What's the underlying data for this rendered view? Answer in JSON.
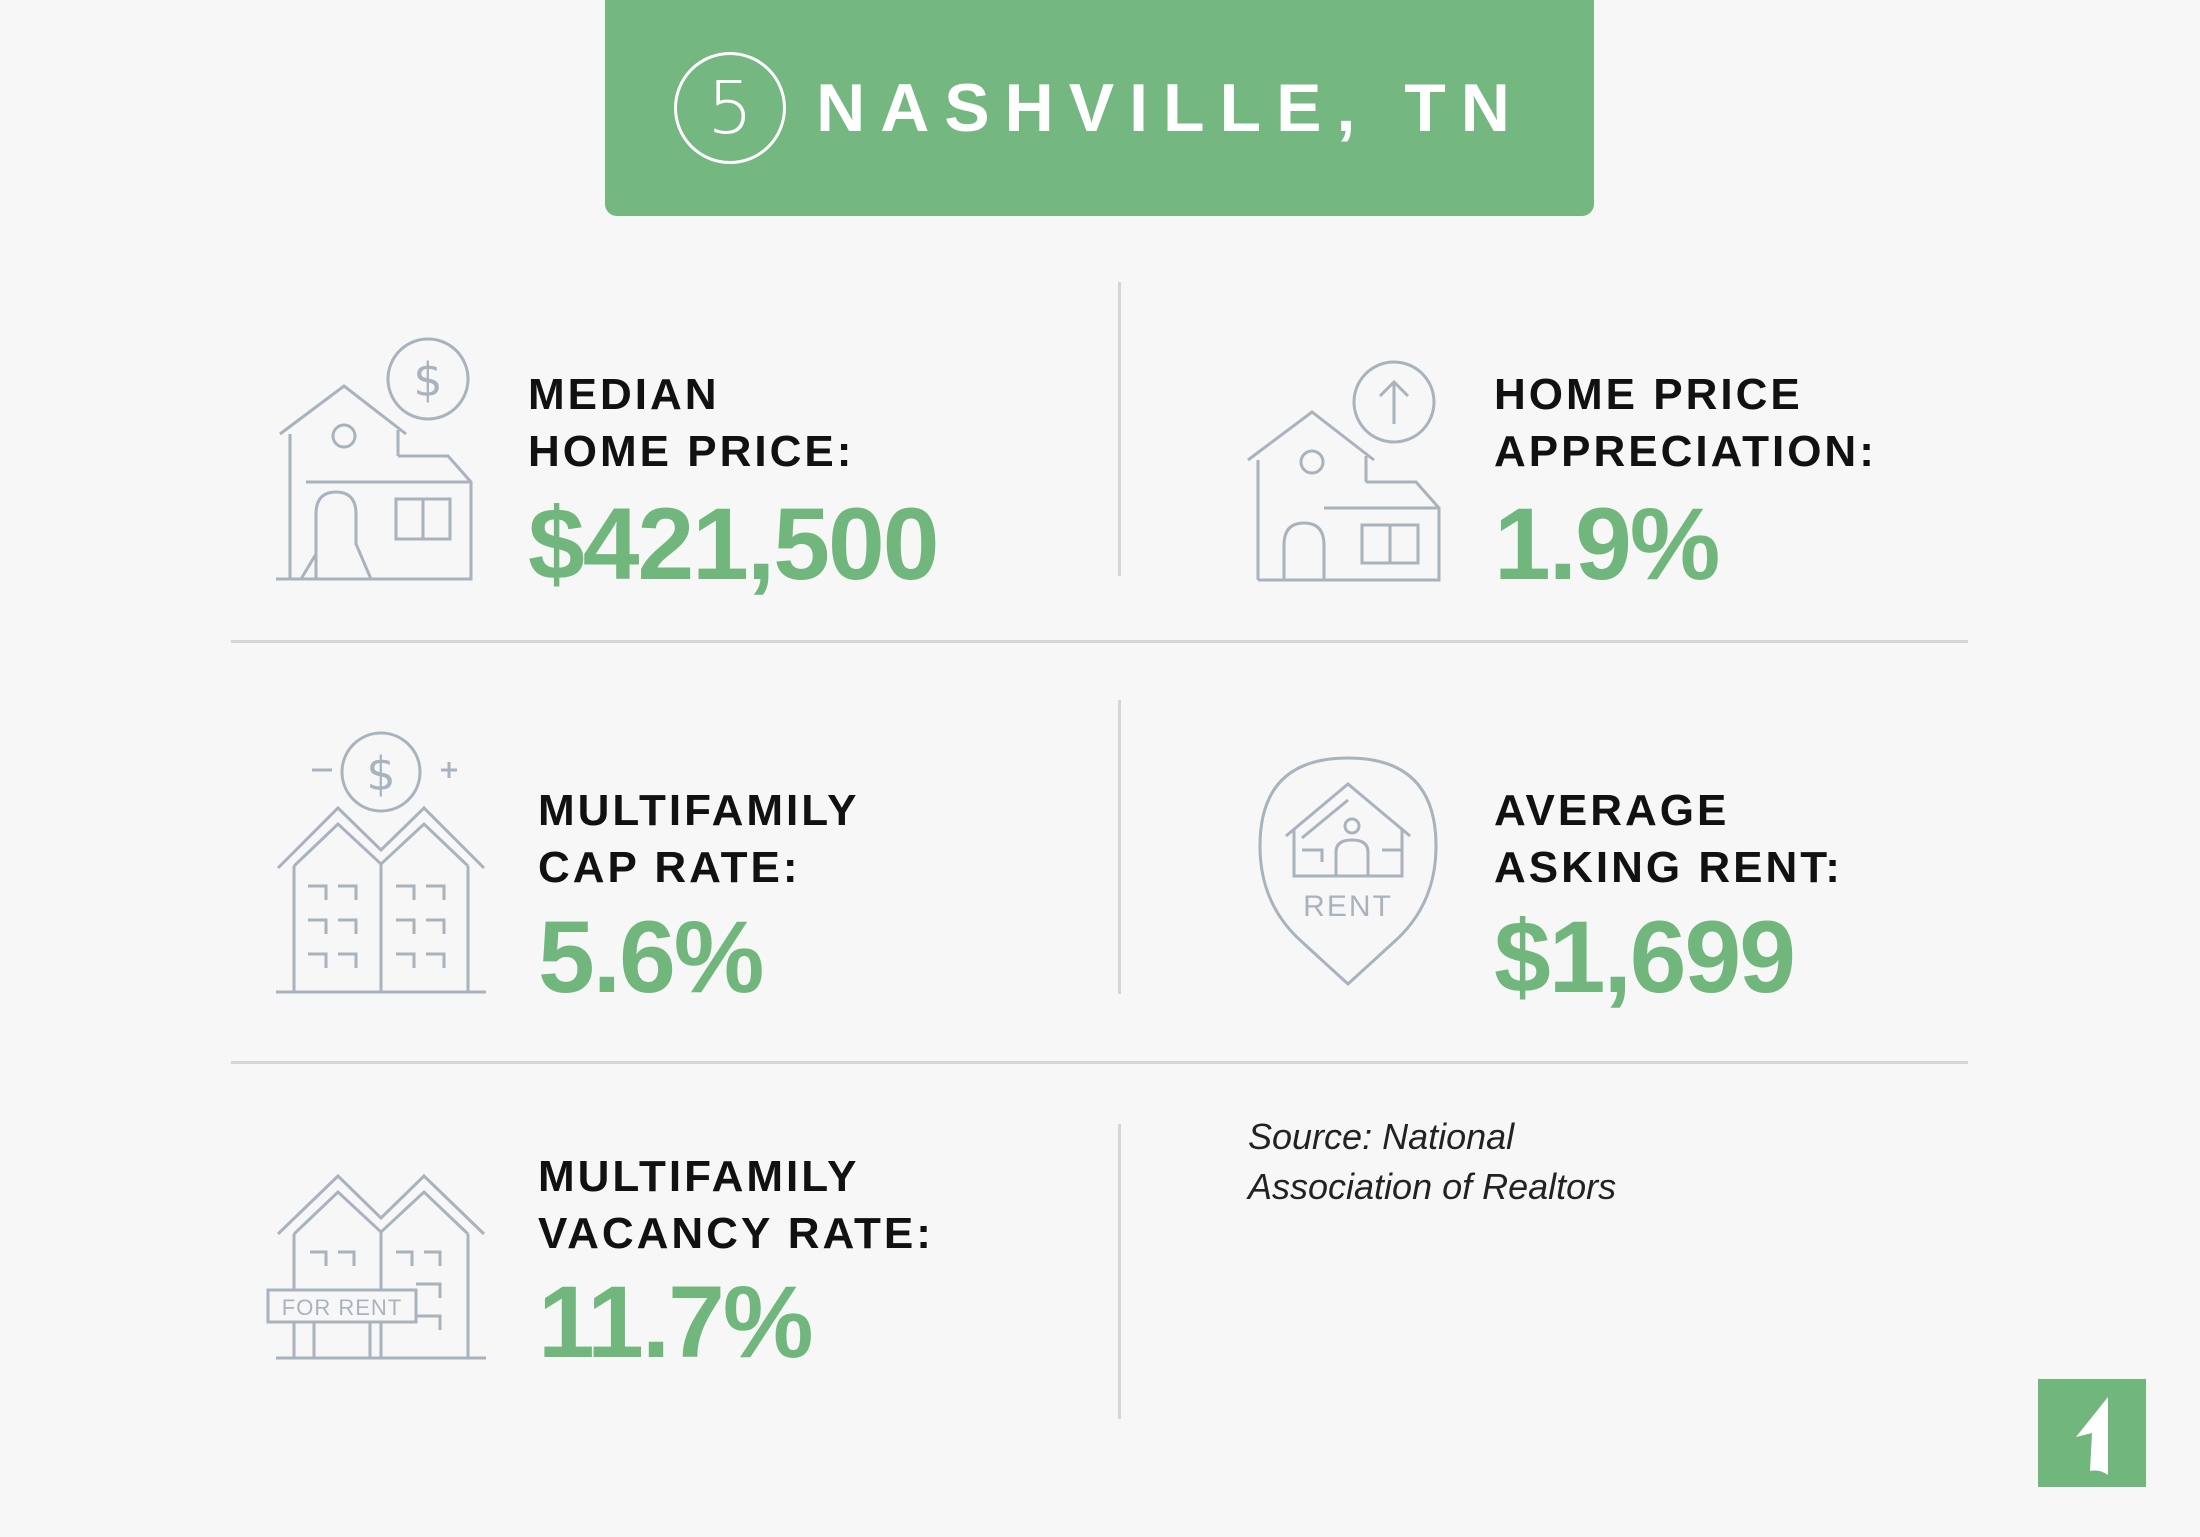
{
  "header": {
    "rank": "5",
    "city": "NASHVILLE, TN"
  },
  "stats": [
    {
      "label_line1": "MEDIAN",
      "label_line2": "HOME PRICE:",
      "value": "$421,500",
      "icon": "house-dollar-icon"
    },
    {
      "label_line1": "HOME PRICE",
      "label_line2": "APPRECIATION:",
      "value": "1.9%",
      "icon": "house-arrow-up-icon"
    },
    {
      "label_line1": "MULTIFAMILY",
      "label_line2": "CAP RATE:",
      "value": "5.6%",
      "icon": "multifamily-dollar-icon"
    },
    {
      "label_line1": "AVERAGE",
      "label_line2": "ASKING RENT:",
      "value": "$1,699",
      "icon": "rent-pin-icon",
      "icon_text": "RENT"
    },
    {
      "label_line1": "MULTIFAMILY",
      "label_line2": "VACANCY RATE:",
      "value": "11.7%",
      "icon": "for-rent-building-icon",
      "icon_text": "FOR RENT"
    }
  ],
  "source": {
    "line1": "Source: National",
    "line2": "Association of Realtors"
  },
  "colors": {
    "accent": "#71b77d",
    "banner": "#75b781",
    "icon_stroke": "#a9b3be",
    "divider": "#d4d6d8"
  }
}
